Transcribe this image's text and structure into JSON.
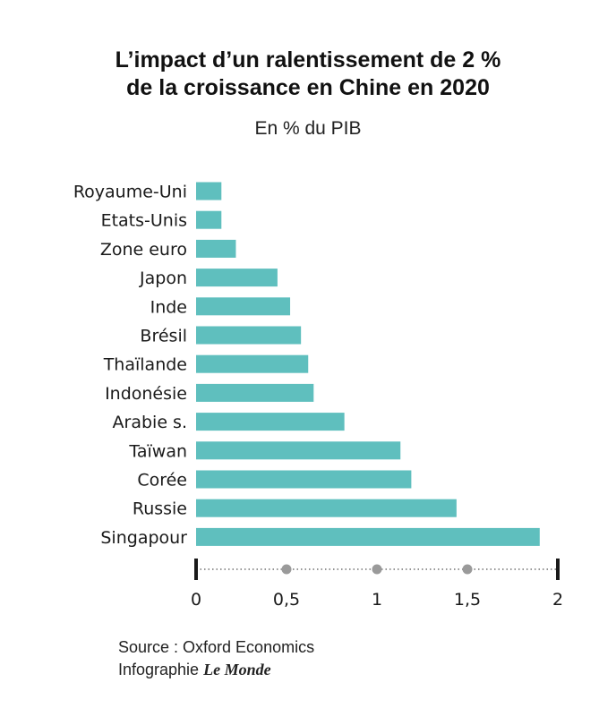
{
  "title_line1": "L’impact d’un ralentissement de 2 %",
  "title_line2": "de la croissance en Chine en 2020",
  "subtitle": "En % du PIB",
  "source": "Source : Oxford Economics",
  "credit_prefix": "Infographie",
  "credit_brand": "Le Monde",
  "colors": {
    "bar": "#5fbfbe",
    "axis": "#1a1a1a",
    "dot": "#9a9a9a"
  },
  "chart_data": {
    "type": "bar",
    "orientation": "horizontal",
    "categories": [
      "Royaume-Uni",
      "Etats-Unis",
      "Zone euro",
      "Japon",
      "Inde",
      "Brésil",
      "Thaïlande",
      "Indonésie",
      "Arabie s.",
      "Taïwan",
      "Corée",
      "Russie",
      "Singapour"
    ],
    "values": [
      0.14,
      0.14,
      0.22,
      0.45,
      0.52,
      0.58,
      0.62,
      0.65,
      0.82,
      1.13,
      1.19,
      1.44,
      1.9
    ],
    "xlim": [
      0,
      2
    ],
    "xticks": [
      0,
      0.5,
      1,
      1.5,
      2
    ],
    "xtick_labels": [
      "0",
      "0,5",
      "1",
      "1,5",
      "2"
    ],
    "grid": false
  }
}
